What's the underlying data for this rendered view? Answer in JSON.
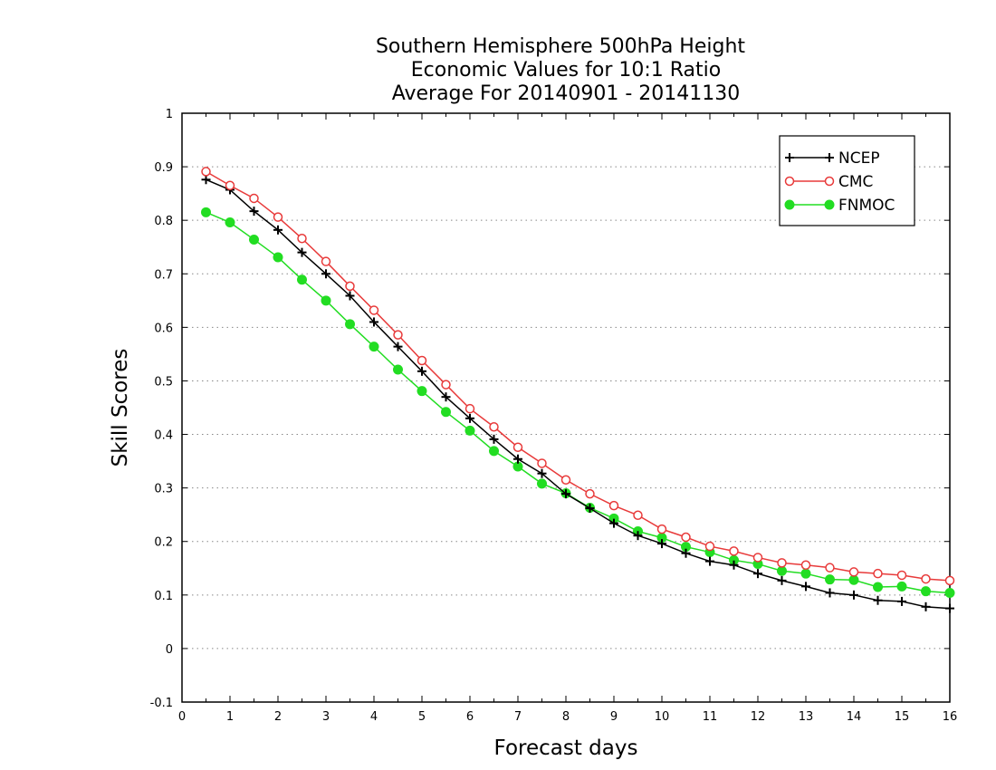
{
  "chart_data": {
    "type": "line",
    "title_lines": [
      "Southern Hemisphere 500hPa Height",
      "Economic Values for 10:1 Ratio",
      "Average For 20140901 - 20141130"
    ],
    "xlabel": "Forecast days",
    "ylabel": "Skill Scores",
    "xlim": [
      0,
      16
    ],
    "ylim": [
      -0.1,
      1
    ],
    "x_ticks": [
      0,
      1,
      2,
      3,
      4,
      5,
      6,
      7,
      8,
      9,
      10,
      11,
      12,
      13,
      14,
      15,
      16
    ],
    "x_tick_labels": [
      "0",
      "1",
      "2",
      "3",
      "4",
      "5",
      "6",
      "7",
      "8",
      "9",
      "10",
      "11",
      "12",
      "13",
      "14",
      "15",
      "16"
    ],
    "y_ticks": [
      -0.1,
      0,
      0.1,
      0.2,
      0.3,
      0.4,
      0.5,
      0.6,
      0.7,
      0.8,
      0.9,
      1
    ],
    "y_tick_labels": [
      "-0.1",
      "0",
      "0.1",
      "0.2",
      "0.3",
      "0.4",
      "0.5",
      "0.6",
      "0.7",
      "0.8",
      "0.9",
      "1"
    ],
    "grid": "horizontal-dotted",
    "legend_position": "top-right",
    "x": [
      0.5,
      1,
      1.5,
      2,
      2.5,
      3,
      3.5,
      4,
      4.5,
      5,
      5.5,
      6,
      6.5,
      7,
      7.5,
      8,
      8.5,
      9,
      9.5,
      10,
      10.5,
      11,
      11.5,
      12,
      12.5,
      13,
      13.5,
      14,
      14.5,
      15,
      15.5,
      16
    ],
    "series": [
      {
        "name": "NCEP",
        "color": "#000000",
        "marker": "plus",
        "values": [
          0.876,
          0.857,
          0.817,
          0.782,
          0.74,
          0.7,
          0.659,
          0.61,
          0.564,
          0.518,
          0.47,
          0.43,
          0.391,
          0.354,
          0.327,
          0.289,
          0.262,
          0.234,
          0.211,
          0.196,
          0.178,
          0.163,
          0.156,
          0.14,
          0.127,
          0.116,
          0.104,
          0.1,
          0.09,
          0.088,
          0.078,
          0.075
        ]
      },
      {
        "name": "CMC",
        "color": "#e83a3a",
        "marker": "open-circle",
        "values": [
          0.891,
          0.865,
          0.841,
          0.806,
          0.766,
          0.723,
          0.677,
          0.632,
          0.586,
          0.538,
          0.493,
          0.448,
          0.414,
          0.376,
          0.346,
          0.315,
          0.289,
          0.267,
          0.249,
          0.223,
          0.208,
          0.191,
          0.182,
          0.17,
          0.16,
          0.156,
          0.151,
          0.143,
          0.14,
          0.137,
          0.13,
          0.127
        ]
      },
      {
        "name": "FNMOC",
        "color": "#22dd22",
        "marker": "filled-circle",
        "values": [
          0.815,
          0.796,
          0.764,
          0.731,
          0.689,
          0.65,
          0.606,
          0.564,
          0.521,
          0.481,
          0.442,
          0.407,
          0.369,
          0.34,
          0.308,
          0.29,
          0.263,
          0.243,
          0.219,
          0.207,
          0.19,
          0.18,
          0.165,
          0.158,
          0.145,
          0.14,
          0.129,
          0.128,
          0.115,
          0.116,
          0.107,
          0.104
        ]
      }
    ]
  }
}
